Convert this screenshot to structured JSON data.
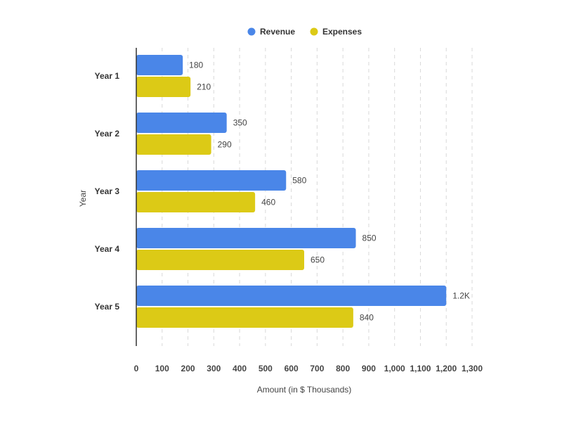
{
  "chart_data": {
    "type": "bar",
    "orientation": "horizontal",
    "categories": [
      "Year 1",
      "Year 2",
      "Year 3",
      "Year 4",
      "Year 5"
    ],
    "series": [
      {
        "name": "Revenue",
        "color": "#4a86e8",
        "values": [
          180,
          350,
          580,
          850,
          1200
        ],
        "labels": [
          "180",
          "350",
          "580",
          "850",
          "1.2K"
        ]
      },
      {
        "name": "Expenses",
        "color": "#dcca16",
        "values": [
          210,
          290,
          460,
          650,
          840
        ],
        "labels": [
          "210",
          "290",
          "460",
          "650",
          "840"
        ]
      }
    ],
    "xlabel": "Amount (in $ Thousands)",
    "ylabel": "Year",
    "xlim": [
      0,
      1300
    ],
    "xticks": [
      0,
      100,
      200,
      300,
      400,
      500,
      600,
      700,
      800,
      900,
      1000,
      1100,
      1200,
      1300
    ],
    "xtick_labels": [
      "0",
      "100",
      "200",
      "300",
      "400",
      "500",
      "600",
      "700",
      "800",
      "900",
      "1,000",
      "1,100",
      "1,200",
      "1,300"
    ],
    "grid": "vertical dashed",
    "legend_position": "top-center"
  }
}
